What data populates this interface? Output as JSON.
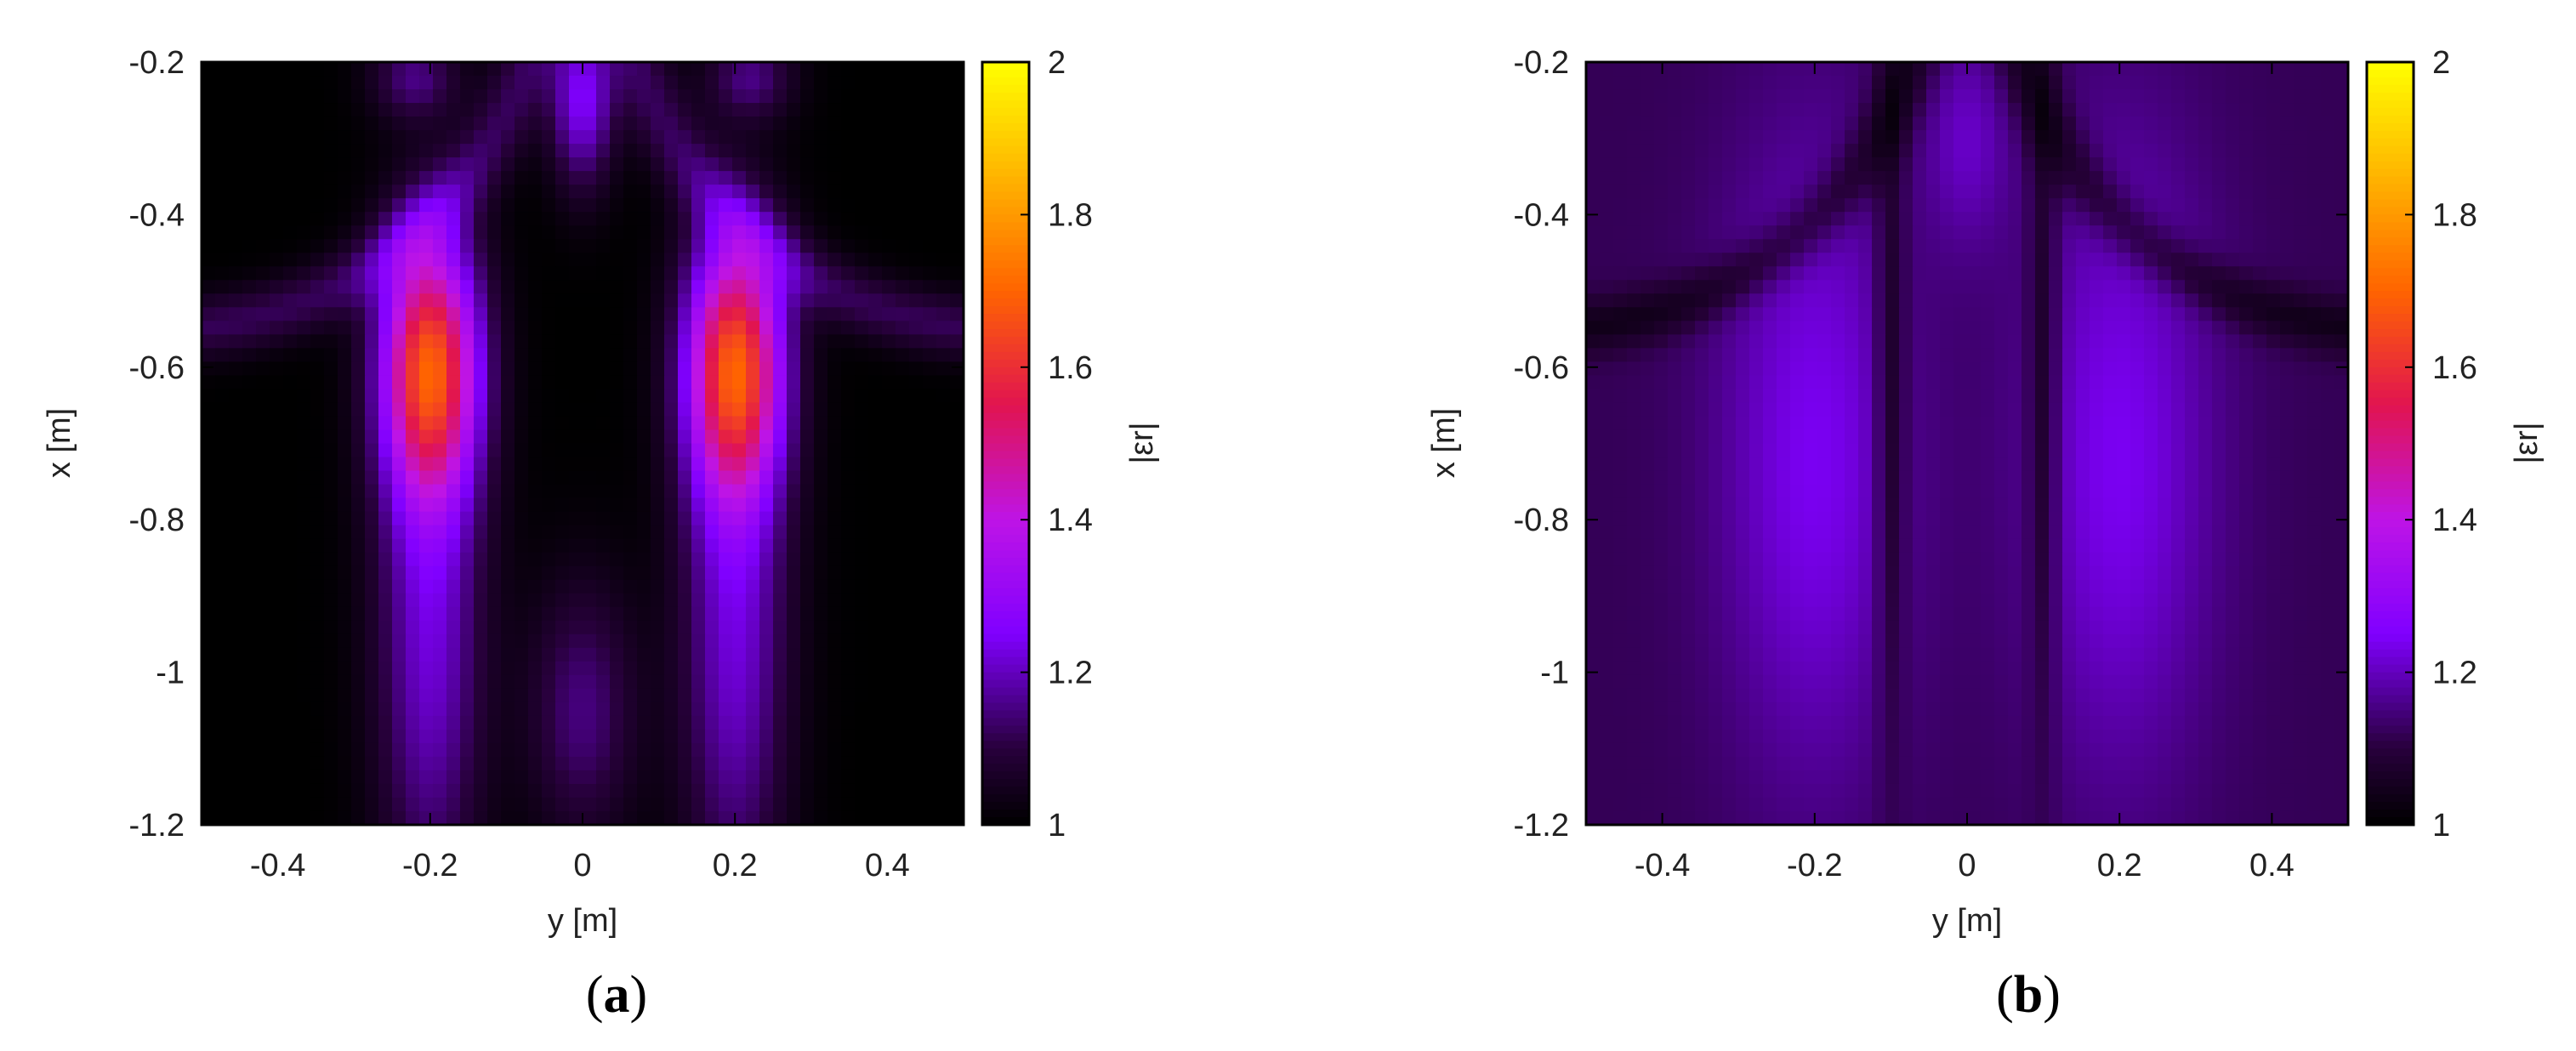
{
  "colors": {
    "low": "#000000",
    "mid": "#8000ff",
    "high": "#ffff00",
    "frame": "#000000"
  },
  "panels": [
    {
      "label_open": "(",
      "label_letter": "a",
      "label_close": ")",
      "colorbar_label": "|εr|"
    },
    {
      "label_open": "(",
      "label_letter": "b",
      "label_close": ")",
      "colorbar_label": "|εr|"
    }
  ],
  "chart_data": [
    {
      "type": "heatmap",
      "title": "",
      "xlabel": "y [m]",
      "ylabel": "x [m]",
      "colorbar_label": "|εr|",
      "xlim": [
        -0.5,
        0.5
      ],
      "ylim": [
        -1.2,
        -0.2
      ],
      "zlim": [
        1,
        2
      ],
      "xticks": [
        -0.4,
        -0.2,
        0,
        0.2,
        0.4
      ],
      "xtick_labels": [
        "-0.4",
        "-0.2",
        "0",
        "0.2",
        "0.4"
      ],
      "yticks": [
        -0.2,
        -0.4,
        -0.6,
        -0.8,
        -1,
        -1.2
      ],
      "ytick_labels": [
        "-0.2",
        "-0.4",
        "-0.6",
        "-0.8",
        "-1",
        "-1.2"
      ],
      "cbticks": [
        1,
        1.2,
        1.4,
        1.6,
        1.8,
        2
      ],
      "cbtick_labels": [
        "1",
        "1.2",
        "1.4",
        "1.6",
        "1.8",
        "2"
      ],
      "grid": false,
      "colormap": "black-purple-orange-yellow",
      "field": {
        "background": 1.0,
        "lobes": [
          {
            "y": -0.2,
            "x": -0.6,
            "sy": 0.045,
            "sx": 0.12,
            "amp": 0.62
          },
          {
            "y": 0.2,
            "x": -0.6,
            "sy": 0.045,
            "sx": 0.12,
            "amp": 0.62
          },
          {
            "y": -0.2,
            "x": -0.95,
            "sy": 0.05,
            "sx": 0.25,
            "amp": 0.22
          },
          {
            "y": 0.2,
            "x": -0.95,
            "sy": 0.05,
            "sx": 0.25,
            "amp": 0.22
          },
          {
            "y": 0.0,
            "x": -0.25,
            "sy": 0.03,
            "sx": 0.08,
            "amp": 0.25
          },
          {
            "y": 0.0,
            "x": -1.05,
            "sy": 0.05,
            "sx": 0.12,
            "amp": 0.15
          },
          {
            "y": -0.22,
            "x": -0.22,
            "sy": 0.04,
            "sx": 0.04,
            "amp": 0.15
          },
          {
            "y": 0.22,
            "x": -0.22,
            "sy": 0.04,
            "sx": 0.04,
            "amp": 0.15
          }
        ],
        "arcs": [
          {
            "y": 0.55,
            "x": -0.05,
            "r": 0.5,
            "w": 0.03,
            "amp": 0.12
          },
          {
            "y": -0.55,
            "x": -0.05,
            "r": 0.5,
            "w": 0.03,
            "amp": 0.12
          }
        ]
      }
    },
    {
      "type": "heatmap",
      "title": "",
      "xlabel": "y [m]",
      "ylabel": "x [m]",
      "colorbar_label": "|εr|",
      "xlim": [
        -0.5,
        0.5
      ],
      "ylim": [
        -1.2,
        -0.2
      ],
      "zlim": [
        1,
        2
      ],
      "xticks": [
        -0.4,
        -0.2,
        0,
        0.2,
        0.4
      ],
      "xtick_labels": [
        "-0.4",
        "-0.2",
        "0",
        "0.2",
        "0.4"
      ],
      "yticks": [
        -0.2,
        -0.4,
        -0.6,
        -0.8,
        -1,
        -1.2
      ],
      "ytick_labels": [
        "-0.2",
        "-0.4",
        "-0.6",
        "-0.8",
        "-1",
        "-1.2"
      ],
      "cbticks": [
        1,
        1.2,
        1.4,
        1.6,
        1.8,
        2
      ],
      "cbtick_labels": [
        "1",
        "1.2",
        "1.4",
        "1.6",
        "1.8",
        "2"
      ],
      "grid": false,
      "colormap": "black-purple-orange-yellow",
      "field": {
        "background": 1.12,
        "lobes": [
          {
            "y": -0.2,
            "x": -0.72,
            "sy": 0.09,
            "sx": 0.3,
            "amp": 0.12
          },
          {
            "y": 0.2,
            "x": -0.72,
            "sy": 0.09,
            "sx": 0.3,
            "amp": 0.12
          },
          {
            "y": 0.0,
            "x": -0.3,
            "sy": 0.04,
            "sx": 0.1,
            "amp": 0.08
          },
          {
            "y": -0.1,
            "x": -0.65,
            "sy": 0.015,
            "sx": 0.3,
            "amp": -0.1
          },
          {
            "y": 0.1,
            "x": -0.65,
            "sy": 0.015,
            "sx": 0.3,
            "amp": -0.1
          }
        ],
        "arcs": [
          {
            "y": 0.55,
            "x": -0.05,
            "r": 0.5,
            "w": 0.025,
            "amp": -0.08
          },
          {
            "y": -0.55,
            "x": -0.05,
            "r": 0.5,
            "w": 0.025,
            "amp": -0.08
          }
        ]
      }
    }
  ]
}
